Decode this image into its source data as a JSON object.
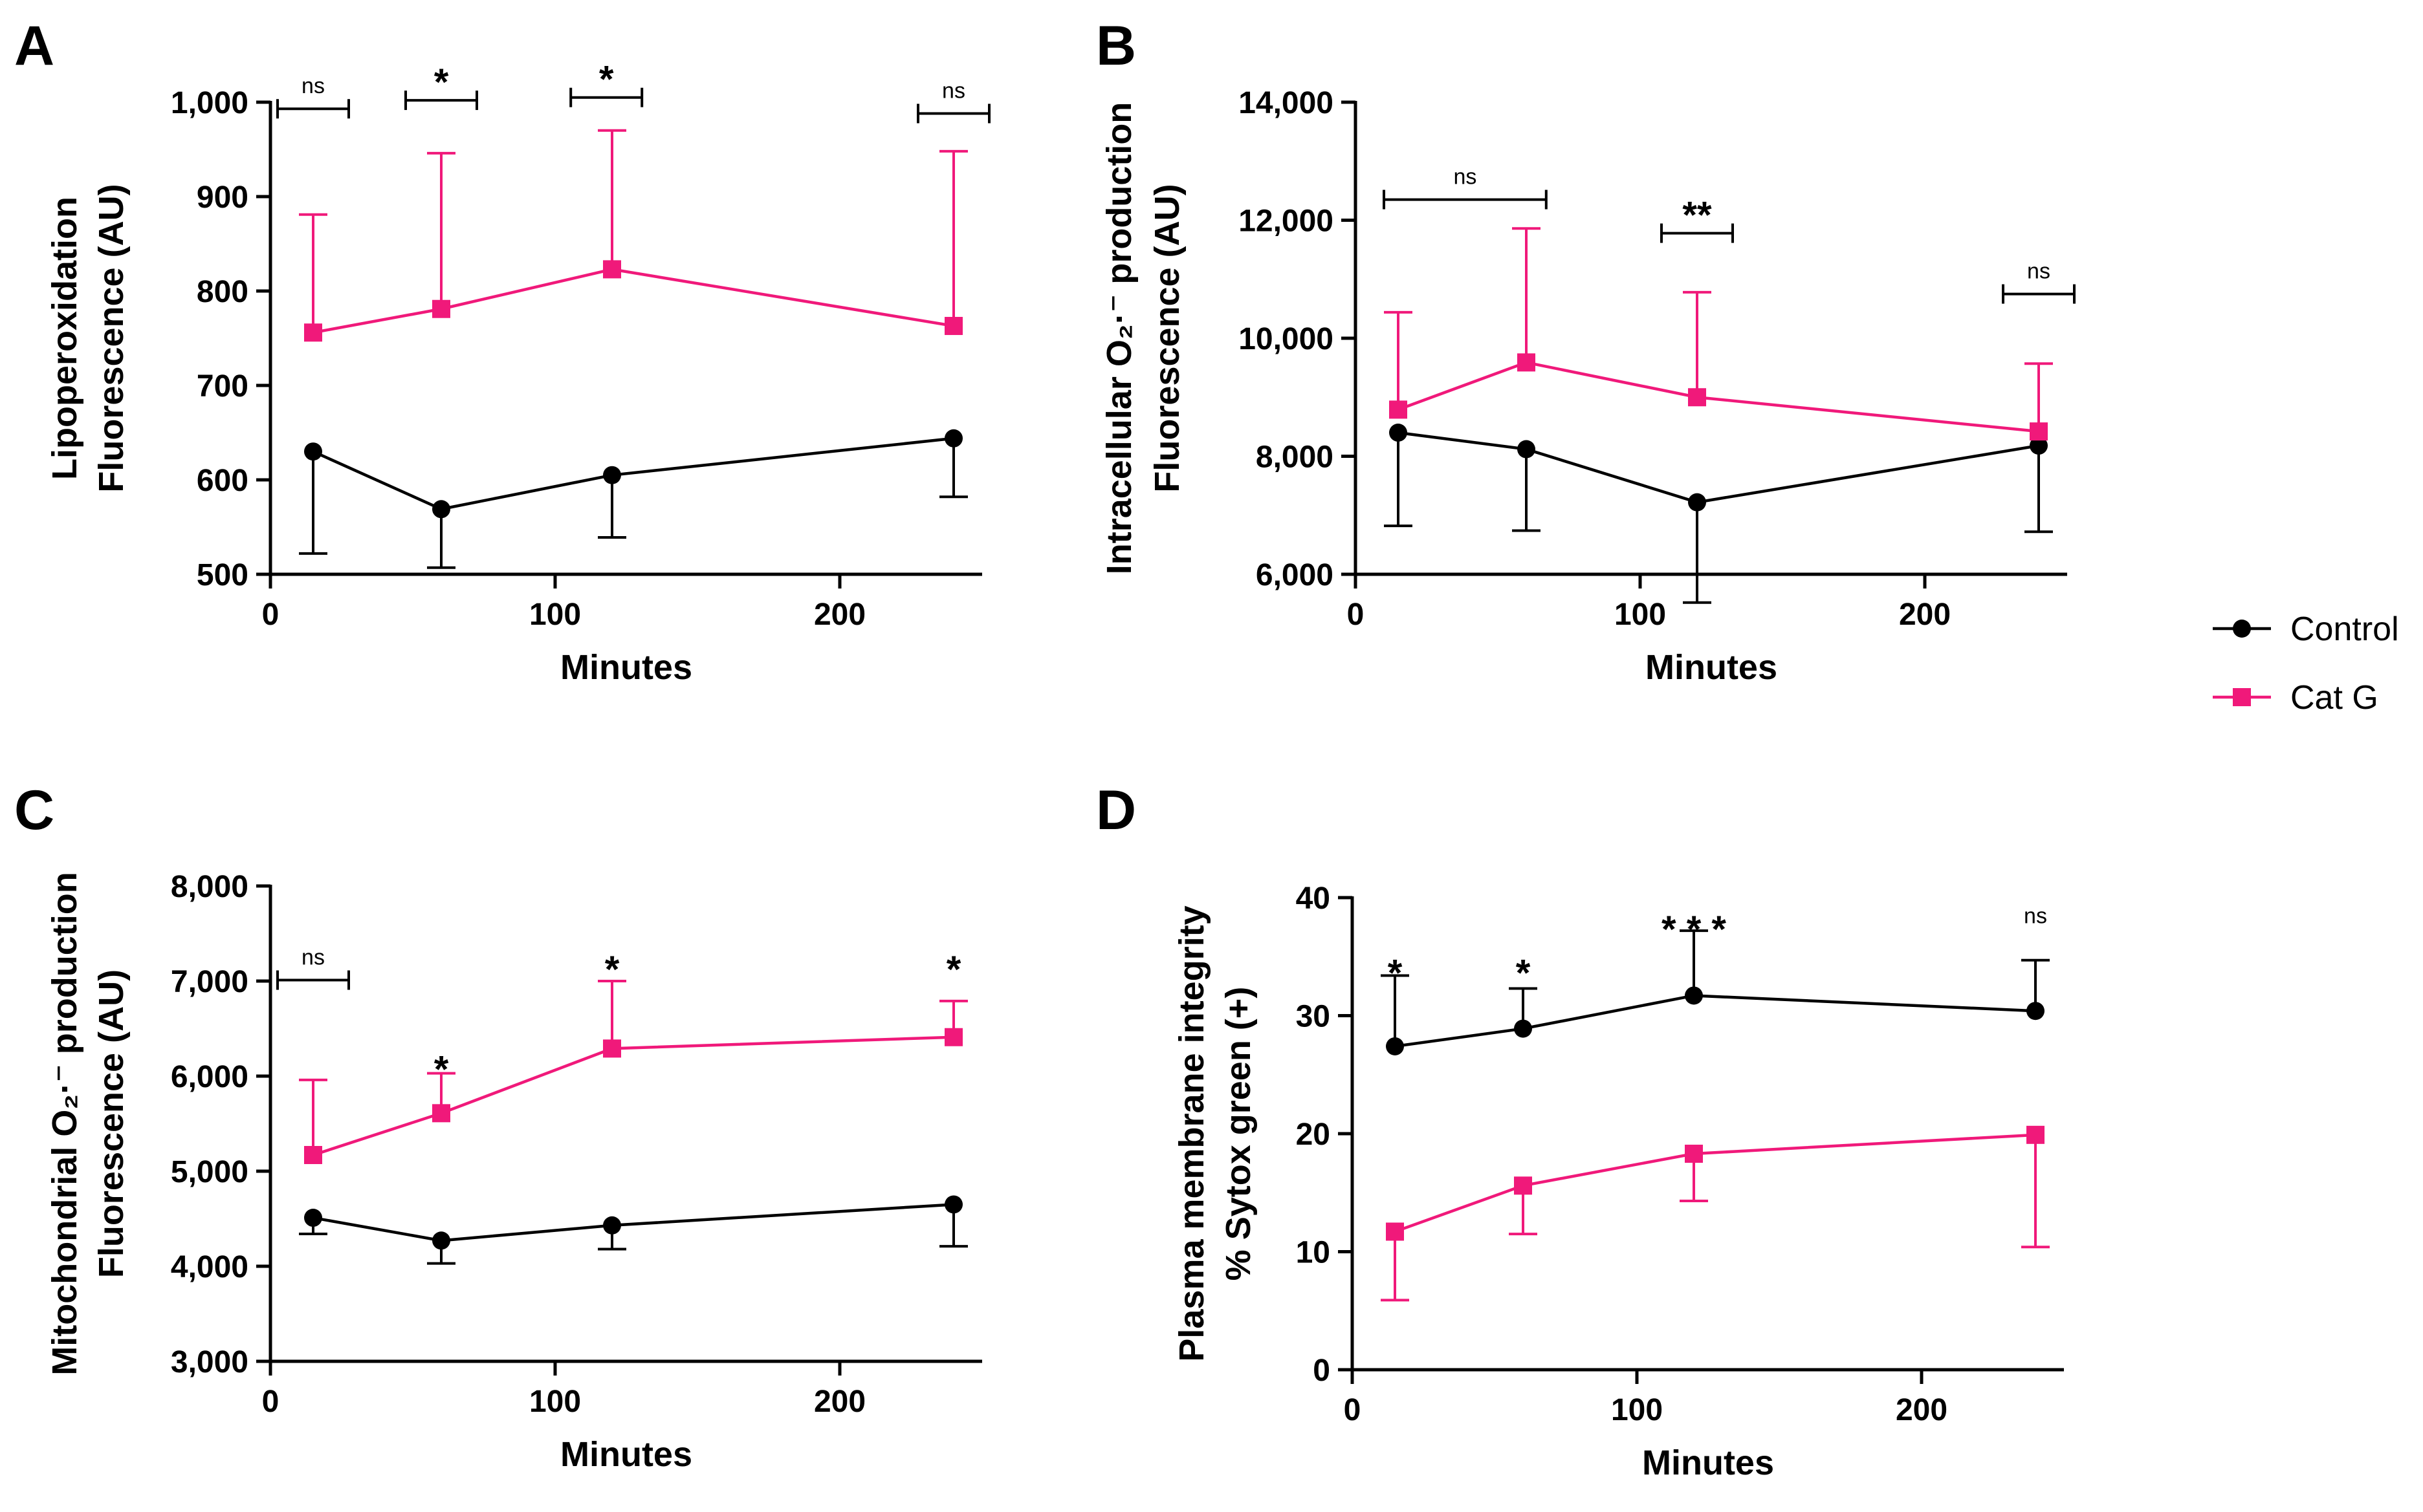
{
  "chart_data": [
    {
      "panel": "A",
      "type": "line",
      "ylabel": [
        "Lipoperoxidation",
        "Fluorescence (AU)"
      ],
      "xlabel": "Minutes",
      "xlim": [
        0,
        250
      ],
      "xticks": [
        0,
        100,
        200
      ],
      "xtick_labels": [
        "0",
        "100",
        "200"
      ],
      "ylim": [
        500,
        1000
      ],
      "yticks": [
        500,
        600,
        700,
        800,
        900,
        1000
      ],
      "ytick_labels": [
        "500",
        "600",
        "700",
        "800",
        "900",
        "1,000"
      ],
      "series": [
        {
          "name": "Control",
          "x": [
            15,
            60,
            120,
            240
          ],
          "values": [
            630,
            569,
            605,
            644
          ],
          "err": [
            108,
            62,
            66,
            62
          ]
        },
        {
          "name": "Cat G",
          "x": [
            15,
            60,
            120,
            240
          ],
          "values": [
            756,
            781,
            823,
            763
          ],
          "err": [
            125,
            165,
            147,
            185
          ]
        }
      ],
      "significance": [
        {
          "x": 15,
          "label": "ns",
          "y": 993,
          "bracket": true
        },
        {
          "x": 60,
          "label": "*",
          "y": 1002,
          "bracket": true
        },
        {
          "x": 118,
          "label": "*",
          "y": 1005,
          "bracket": true
        },
        {
          "x": 240,
          "label": "ns",
          "y": 988,
          "bracket": true
        }
      ]
    },
    {
      "panel": "B",
      "type": "line",
      "ylabel": [
        "Intracellular O₂·⁻ production",
        "Fluorescence (AU)"
      ],
      "xlabel": "Minutes",
      "xlim": [
        0,
        250
      ],
      "xticks": [
        0,
        100,
        200
      ],
      "xtick_labels": [
        "0",
        "100",
        "200"
      ],
      "ylim": [
        6000,
        14000
      ],
      "yticks": [
        6000,
        8000,
        10000,
        12000,
        14000
      ],
      "ytick_labels": [
        "6,000",
        "8,000",
        "10,000",
        "12,000",
        "14,000"
      ],
      "series": [
        {
          "name": "Control",
          "x": [
            15,
            60,
            120,
            240
          ],
          "values": [
            8400,
            8120,
            7220,
            8180
          ],
          "err": [
            1580,
            1380,
            1700,
            1460
          ]
        },
        {
          "name": "Cat G",
          "x": [
            15,
            60,
            120,
            240
          ],
          "values": [
            8790,
            9590,
            9000,
            8420
          ],
          "err": [
            1650,
            2270,
            1780,
            1150
          ]
        }
      ],
      "significance": [
        {
          "x": 38,
          "label": "ns",
          "y": 12350,
          "bracket": true,
          "x_from": 10,
          "x_to": 67
        },
        {
          "x": 120,
          "label": "**",
          "y": 11780,
          "bracket": true
        },
        {
          "x": 240,
          "label": "ns",
          "y": 10750,
          "bracket": true
        }
      ]
    },
    {
      "panel": "C",
      "type": "line",
      "ylabel": [
        "Mitochondrial O₂·⁻ production",
        "Fluorescence (AU)"
      ],
      "xlabel": "Minutes",
      "xlim": [
        0,
        250
      ],
      "xticks": [
        0,
        100,
        200
      ],
      "xtick_labels": [
        "0",
        "100",
        "200"
      ],
      "ylim": [
        3000,
        8000
      ],
      "yticks": [
        3000,
        4000,
        5000,
        6000,
        7000,
        8000
      ],
      "ytick_labels": [
        "3,000",
        "4,000",
        "5,000",
        "6,000",
        "7,000",
        "8,000"
      ],
      "series": [
        {
          "name": "Control",
          "x": [
            15,
            60,
            120,
            240
          ],
          "values": [
            4510,
            4270,
            4430,
            4650
          ],
          "err": [
            170,
            240,
            250,
            440
          ]
        },
        {
          "name": "Cat G",
          "x": [
            15,
            60,
            120,
            240
          ],
          "values": [
            5170,
            5610,
            6290,
            6410
          ],
          "err": [
            790,
            420,
            710,
            380
          ]
        }
      ],
      "significance": [
        {
          "x": 15,
          "label": "ns",
          "y": 7010,
          "bracket": true
        },
        {
          "x": 60,
          "label": "*",
          "y": 6180,
          "bracket": false
        },
        {
          "x": 120,
          "label": "*",
          "y": 7230,
          "bracket": false
        },
        {
          "x": 240,
          "label": "*",
          "y": 7230,
          "bracket": false
        }
      ]
    },
    {
      "panel": "D",
      "type": "line",
      "ylabel": [
        "Plasma membrane integrity",
        "% Sytox green (+)"
      ],
      "xlabel": "Minutes",
      "xlim": [
        0,
        250
      ],
      "xticks": [
        0,
        100,
        200
      ],
      "xtick_labels": [
        "0",
        "100",
        "200"
      ],
      "ylim": [
        0,
        40
      ],
      "yticks": [
        0,
        10,
        20,
        30,
        40
      ],
      "ytick_labels": [
        "0",
        "10",
        "20",
        "30",
        "40"
      ],
      "series": [
        {
          "name": "Control",
          "x": [
            15,
            60,
            120,
            240
          ],
          "values": [
            27.4,
            28.9,
            31.7,
            30.4
          ],
          "err": [
            6.0,
            3.4,
            5.5,
            4.3
          ]
        },
        {
          "name": "Cat G",
          "x": [
            15,
            60,
            120,
            240
          ],
          "values": [
            11.7,
            15.6,
            18.3,
            19.9
          ],
          "err": [
            5.8,
            4.1,
            4.0,
            9.5
          ]
        }
      ],
      "significance": [
        {
          "x": 15,
          "label": "*",
          "y": 34.5,
          "bracket": false
        },
        {
          "x": 60,
          "label": "*",
          "y": 34.5,
          "bracket": false
        },
        {
          "x": 120,
          "label": "* * *",
          "y": 38.2,
          "bracket": false
        },
        {
          "x": 240,
          "label": "ns",
          "y": 38.5,
          "bracket": false
        }
      ]
    }
  ],
  "legend": {
    "placement": "right",
    "entries": [
      {
        "name": "Control",
        "marker": "circle",
        "color": "#000000"
      },
      {
        "name": "Cat G",
        "marker": "square",
        "color": "#f0197a"
      }
    ]
  },
  "colors": {
    "Control": "#000000",
    "Cat G": "#f0197a"
  }
}
